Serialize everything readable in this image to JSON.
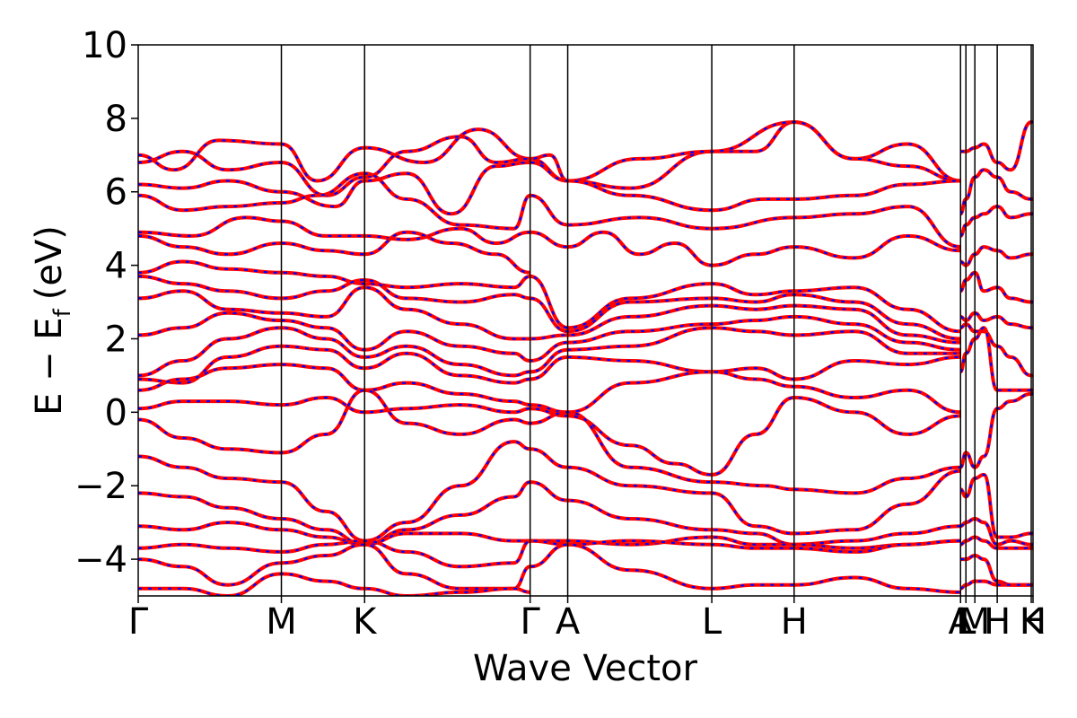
{
  "chart_data": {
    "type": "line",
    "title": "",
    "xlabel": "Wave Vector",
    "ylabel": "E − E",
    "ylabel_sub": "f",
    "ylabel_unit": "(eV)",
    "ylim": [
      -5,
      10
    ],
    "yticks": [
      -4,
      -2,
      0,
      2,
      4,
      6,
      8,
      10
    ],
    "ytick_labels": [
      "−4",
      "−2",
      "0",
      "2",
      "4",
      "6",
      "8",
      "10"
    ],
    "xlim": [
      0,
      1
    ],
    "kpoints": [
      {
        "label": "Γ",
        "x": 0.0
      },
      {
        "label": "M",
        "x": 0.16
      },
      {
        "label": "K",
        "x": 0.253
      },
      {
        "label": "Γ",
        "x": 0.438
      },
      {
        "label": "A",
        "x": 0.48
      },
      {
        "label": "L",
        "x": 0.641
      },
      {
        "label": "H",
        "x": 0.733
      },
      {
        "label": "A",
        "x": 0.919
      },
      {
        "label": "L",
        "x": 0.925
      },
      {
        "label": "M",
        "x": 0.935
      },
      {
        "label": "H",
        "x": 0.96
      },
      {
        "label": "K",
        "x": 0.998
      },
      {
        "label": "H",
        "x": 1.0
      }
    ],
    "grid": false,
    "legend": "none",
    "series_styles": [
      {
        "color": "#ff0000",
        "style": "solid"
      },
      {
        "color": "#0000ff",
        "style": "dashed"
      }
    ],
    "bands": [
      {
        "x": [
          0,
          0.04,
          0.09,
          0.16,
          0.2,
          0.253,
          0.32,
          0.38,
          0.438,
          0.48,
          0.55,
          0.641,
          0.69,
          0.733,
          0.8,
          0.86,
          0.919
        ],
        "y": [
          7.0,
          6.6,
          7.4,
          7.3,
          6.3,
          7.2,
          6.8,
          7.7,
          6.9,
          6.3,
          6.1,
          7.1,
          7.1,
          7.9,
          6.9,
          7.3,
          6.3
        ]
      },
      {
        "x": [
          0,
          0.05,
          0.1,
          0.16,
          0.21,
          0.253,
          0.3,
          0.36,
          0.4,
          0.438,
          0.46,
          0.48,
          0.56,
          0.641,
          0.733,
          0.8,
          0.86,
          0.919
        ],
        "y": [
          6.8,
          7.1,
          6.6,
          6.8,
          5.9,
          6.4,
          7.1,
          7.5,
          6.8,
          6.9,
          7.0,
          6.3,
          6.9,
          7.1,
          7.9,
          6.9,
          6.7,
          6.3
        ]
      },
      {
        "x": [
          0,
          0.05,
          0.1,
          0.16,
          0.22,
          0.253,
          0.3,
          0.35,
          0.4,
          0.438,
          0.48,
          0.55,
          0.641,
          0.7,
          0.733,
          0.8,
          0.86,
          0.919
        ],
        "y": [
          6.2,
          6.1,
          6.3,
          6.0,
          5.6,
          6.3,
          6.5,
          5.4,
          6.7,
          6.8,
          6.3,
          5.9,
          5.5,
          5.8,
          5.8,
          5.9,
          6.2,
          6.3
        ]
      },
      {
        "x": [
          0,
          0.05,
          0.1,
          0.16,
          0.2,
          0.253,
          0.3,
          0.36,
          0.42,
          0.438,
          0.48,
          0.56,
          0.641,
          0.733,
          0.8,
          0.86,
          0.919
        ],
        "y": [
          5.9,
          5.5,
          5.6,
          5.7,
          5.9,
          6.5,
          5.8,
          5.1,
          5.0,
          5.9,
          5.1,
          5.3,
          5.0,
          5.3,
          5.4,
          5.6,
          4.5
        ]
      },
      {
        "x": [
          0,
          0.06,
          0.12,
          0.16,
          0.21,
          0.253,
          0.3,
          0.36,
          0.4,
          0.438,
          0.48,
          0.52,
          0.56,
          0.6,
          0.641,
          0.69,
          0.733,
          0.8,
          0.86,
          0.919
        ],
        "y": [
          4.9,
          4.8,
          5.3,
          5.2,
          4.8,
          4.8,
          4.7,
          5.0,
          4.6,
          4.9,
          4.5,
          4.9,
          4.3,
          4.6,
          4.0,
          4.3,
          4.5,
          4.2,
          4.8,
          4.4
        ]
      },
      {
        "x": [
          0,
          0.05,
          0.1,
          0.16,
          0.21,
          0.253,
          0.3,
          0.35,
          0.4,
          0.438
        ],
        "y": [
          4.8,
          4.5,
          4.3,
          4.6,
          4.4,
          4.3,
          4.9,
          4.6,
          4.3,
          3.8
        ]
      },
      {
        "x": [
          0,
          0.05,
          0.1,
          0.16,
          0.21,
          0.253,
          0.3,
          0.36,
          0.42,
          0.438,
          0.48,
          0.55,
          0.641,
          0.69,
          0.733,
          0.8,
          0.86,
          0.919
        ],
        "y": [
          3.8,
          4.1,
          3.9,
          3.8,
          3.7,
          3.5,
          3.4,
          3.5,
          3.4,
          3.7,
          2.3,
          3.1,
          3.5,
          3.2,
          3.3,
          3.4,
          2.8,
          2.2
        ]
      },
      {
        "x": [
          0,
          0.05,
          0.1,
          0.16,
          0.21,
          0.253,
          0.3,
          0.36,
          0.42,
          0.438,
          0.48,
          0.55,
          0.641,
          0.69,
          0.733,
          0.8,
          0.86,
          0.919
        ],
        "y": [
          3.7,
          3.5,
          3.3,
          3.1,
          3.3,
          3.6,
          3.1,
          3.0,
          3.2,
          3.1,
          2.2,
          3.0,
          3.1,
          3.0,
          3.2,
          3.0,
          2.4,
          2.0
        ]
      },
      {
        "x": [
          0,
          0.05,
          0.1,
          0.16,
          0.21,
          0.253,
          0.3,
          0.36,
          0.42,
          0.438,
          0.48,
          0.55,
          0.641,
          0.69,
          0.733,
          0.8,
          0.86,
          0.919
        ],
        "y": [
          3.1,
          3.3,
          2.8,
          2.7,
          2.6,
          3.4,
          2.8,
          2.4,
          2.0,
          2.0,
          2.1,
          2.6,
          2.9,
          2.8,
          2.9,
          2.8,
          2.1,
          1.9
        ]
      },
      {
        "x": [
          0,
          0.05,
          0.1,
          0.16,
          0.21,
          0.253,
          0.3,
          0.36,
          0.42,
          0.438,
          0.48,
          0.55,
          0.641,
          0.69,
          0.733,
          0.8,
          0.86,
          0.919
        ],
        "y": [
          2.1,
          2.3,
          2.7,
          2.5,
          2.3,
          1.7,
          2.2,
          1.8,
          1.6,
          1.4,
          1.9,
          2.2,
          2.4,
          2.5,
          2.6,
          2.4,
          1.9,
          1.7
        ]
      },
      {
        "x": [
          0,
          0.05,
          0.1,
          0.16,
          0.21,
          0.253,
          0.3,
          0.36,
          0.42,
          0.438,
          0.48,
          0.55,
          0.641,
          0.69,
          0.733,
          0.8,
          0.86,
          0.919
        ],
        "y": [
          1.0,
          1.4,
          2.0,
          2.3,
          2.0,
          1.5,
          1.8,
          1.3,
          1.0,
          1.1,
          1.7,
          1.8,
          2.3,
          2.2,
          2.1,
          2.2,
          1.6,
          1.6
        ]
      },
      {
        "x": [
          0,
          0.05,
          0.1,
          0.16,
          0.21,
          0.253,
          0.3,
          0.36,
          0.42,
          0.438,
          0.48,
          0.55,
          0.641,
          0.69,
          0.733,
          0.8,
          0.86,
          0.919
        ],
        "y": [
          0.9,
          0.8,
          1.5,
          1.8,
          1.7,
          1.2,
          1.6,
          1.0,
          0.8,
          0.9,
          1.5,
          1.4,
          1.1,
          1.2,
          0.9,
          1.4,
          1.3,
          1.5
        ]
      },
      {
        "x": [
          0,
          0.05,
          0.1,
          0.16,
          0.21,
          0.253,
          0.3,
          0.36,
          0.42,
          0.438,
          0.48,
          0.55,
          0.641,
          0.69,
          0.733,
          0.8,
          0.86,
          0.919
        ],
        "y": [
          0.6,
          0.9,
          1.2,
          1.3,
          1.2,
          0.6,
          0.8,
          0.5,
          0.3,
          0.2,
          0.0,
          0.8,
          1.1,
          0.9,
          0.7,
          0.4,
          0.6,
          0.0
        ]
      },
      {
        "x": [
          0,
          0.05,
          0.1,
          0.16,
          0.21,
          0.253,
          0.3,
          0.36,
          0.42,
          0.438,
          0.48,
          0.55,
          0.6,
          0.641,
          0.69,
          0.733,
          0.8,
          0.86,
          0.919
        ],
        "y": [
          0.1,
          0.3,
          0.3,
          0.2,
          0.4,
          0.0,
          0.1,
          0.2,
          0.0,
          0.1,
          -0.1,
          -0.9,
          -1.4,
          -1.7,
          -0.6,
          0.4,
          0.0,
          -0.6,
          -0.1
        ]
      },
      {
        "x": [
          0,
          0.05,
          0.1,
          0.16,
          0.21,
          0.253,
          0.3,
          0.36,
          0.42,
          0.438,
          0.48,
          0.55,
          0.641,
          0.7,
          0.733,
          0.8,
          0.86,
          0.919
        ],
        "y": [
          -0.2,
          -0.7,
          -1.0,
          -1.1,
          -0.6,
          0.6,
          -0.3,
          -0.6,
          -0.2,
          -0.3,
          0.0,
          -1.5,
          -1.9,
          -2.0,
          -2.1,
          -2.2,
          -1.8,
          -1.5
        ]
      },
      {
        "x": [
          0,
          0.05,
          0.1,
          0.16,
          0.21,
          0.253,
          0.3,
          0.36,
          0.42,
          0.438,
          0.48,
          0.55,
          0.641,
          0.69,
          0.733,
          0.8,
          0.86,
          0.919
        ],
        "y": [
          -1.2,
          -1.5,
          -1.8,
          -1.9,
          -2.7,
          -3.5,
          -3.0,
          -2.0,
          -0.8,
          -1.0,
          -1.5,
          -2.0,
          -2.2,
          -3.1,
          -3.3,
          -3.2,
          -2.5,
          -1.6
        ]
      },
      {
        "x": [
          0,
          0.05,
          0.1,
          0.16,
          0.21,
          0.253,
          0.3,
          0.36,
          0.42,
          0.438,
          0.48,
          0.55,
          0.641,
          0.69,
          0.733,
          0.8,
          0.86,
          0.919
        ],
        "y": [
          -2.2,
          -2.3,
          -2.6,
          -2.9,
          -3.2,
          -3.6,
          -3.2,
          -2.8,
          -2.3,
          -1.9,
          -2.4,
          -2.9,
          -3.2,
          -3.3,
          -3.6,
          -3.5,
          -3.3,
          -3.1
        ]
      },
      {
        "x": [
          0,
          0.05,
          0.1,
          0.16,
          0.21,
          0.253,
          0.3,
          0.36,
          0.42,
          0.438,
          0.48,
          0.55,
          0.641,
          0.69,
          0.733,
          0.8,
          0.86,
          0.919
        ],
        "y": [
          -3.1,
          -3.2,
          -3.0,
          -3.2,
          -3.4,
          -3.6,
          -3.3,
          -3.3,
          -3.5,
          -3.5,
          -3.5,
          -3.6,
          -3.4,
          -3.6,
          -3.6,
          -3.7,
          -3.6,
          -3.5
        ]
      },
      {
        "x": [
          0,
          0.05,
          0.1,
          0.16,
          0.21,
          0.253,
          0.3,
          0.36,
          0.42,
          0.438,
          0.48,
          0.55,
          0.641,
          0.69,
          0.733,
          0.8,
          0.86,
          0.919
        ],
        "y": [
          -3.7,
          -3.6,
          -3.7,
          -3.8,
          -3.6,
          -3.5,
          -3.8,
          -4.2,
          -4.1,
          -3.5,
          -3.6,
          -3.5,
          -3.6,
          -3.7,
          -3.7,
          -3.8,
          -3.6,
          -3.5
        ]
      },
      {
        "x": [
          0,
          0.05,
          0.1,
          0.16,
          0.21,
          0.253,
          0.3,
          0.36,
          0.42,
          0.438,
          0.48,
          0.55,
          0.641,
          0.69,
          0.733,
          0.8,
          0.86,
          0.919
        ],
        "y": [
          -4.0,
          -4.2,
          -4.7,
          -4.1,
          -3.9,
          -3.6,
          -4.4,
          -4.8,
          -4.8,
          -4.2,
          -3.6,
          -4.3,
          -4.8,
          -4.7,
          -4.7,
          -4.5,
          -4.8,
          -4.9
        ]
      },
      {
        "x": [
          0,
          0.05,
          0.1,
          0.16,
          0.21,
          0.253,
          0.3,
          0.36,
          0.42,
          0.438
        ],
        "y": [
          -4.8,
          -4.8,
          -5.0,
          -4.4,
          -4.6,
          -4.8,
          -5.0,
          -4.9,
          -4.8,
          -4.9
        ]
      },
      {
        "x": [
          0.919,
          0.925,
          0.935,
          0.945,
          0.96,
          0.975,
          0.998,
          1.0
        ],
        "y": [
          7.1,
          7.1,
          7.2,
          7.3,
          6.8,
          6.6,
          7.9,
          7.9
        ]
      },
      {
        "x": [
          0.919,
          0.925,
          0.935,
          0.945,
          0.96,
          0.975,
          0.998,
          1.0
        ],
        "y": [
          5.4,
          5.8,
          6.4,
          6.6,
          6.4,
          6.0,
          5.8,
          5.8
        ]
      },
      {
        "x": [
          0.919,
          0.925,
          0.935,
          0.945,
          0.96,
          0.975,
          0.998,
          1.0
        ],
        "y": [
          4.8,
          5.1,
          5.3,
          5.4,
          5.6,
          5.3,
          5.4,
          5.4
        ]
      },
      {
        "x": [
          0.919,
          0.925,
          0.935,
          0.945,
          0.96,
          0.975,
          0.998,
          1.0
        ],
        "y": [
          4.1,
          4.0,
          4.3,
          4.5,
          4.4,
          4.2,
          4.3,
          4.3
        ]
      },
      {
        "x": [
          0.919,
          0.925,
          0.935,
          0.945,
          0.96,
          0.975,
          0.998,
          1.0
        ],
        "y": [
          3.3,
          3.6,
          3.8,
          3.3,
          3.4,
          3.1,
          3.0,
          3.0
        ]
      },
      {
        "x": [
          0.919,
          0.925,
          0.935,
          0.945,
          0.96,
          0.975,
          0.998,
          1.0
        ],
        "y": [
          2.6,
          2.5,
          2.7,
          2.5,
          2.6,
          2.4,
          2.3,
          2.3
        ]
      },
      {
        "x": [
          0.919,
          0.925,
          0.935,
          0.945,
          0.96,
          0.975,
          0.998,
          1.0
        ],
        "y": [
          2.3,
          2.4,
          2.2,
          2.2,
          1.8,
          1.5,
          1.0,
          1.0
        ]
      },
      {
        "x": [
          0.919,
          0.925,
          0.935,
          0.945,
          0.96,
          0.975,
          0.998,
          1.0
        ],
        "y": [
          1.1,
          1.6,
          2.0,
          2.3,
          0.6,
          0.6,
          0.6,
          0.6
        ]
      },
      {
        "x": [
          0.919,
          0.925,
          0.935,
          0.945,
          0.96,
          0.975,
          0.998,
          1.0
        ],
        "y": [
          -1.5,
          -1.1,
          -1.5,
          -1.2,
          0.1,
          0.3,
          0.5,
          0.5
        ]
      },
      {
        "x": [
          0.919,
          0.925,
          0.935,
          0.945,
          0.96,
          0.975,
          0.998,
          1.0
        ],
        "y": [
          -2.1,
          -2.3,
          -1.8,
          -1.7,
          -3.4,
          -3.4,
          -3.3,
          -3.3
        ]
      },
      {
        "x": [
          0.919,
          0.925,
          0.935,
          0.945,
          0.96,
          0.975,
          0.998,
          1.0
        ],
        "y": [
          -3.1,
          -3.0,
          -2.9,
          -3.0,
          -3.6,
          -3.5,
          -3.6,
          -3.6
        ]
      },
      {
        "x": [
          0.919,
          0.925,
          0.935,
          0.945,
          0.96,
          0.975,
          0.998,
          1.0
        ],
        "y": [
          -3.6,
          -3.5,
          -3.4,
          -3.5,
          -3.7,
          -3.7,
          -3.7,
          -3.7
        ]
      },
      {
        "x": [
          0.919,
          0.925,
          0.935,
          0.945,
          0.96,
          0.975,
          0.998,
          1.0
        ],
        "y": [
          -4.0,
          -4.0,
          -3.9,
          -4.0,
          -4.6,
          -4.7,
          -4.7,
          -4.7
        ]
      },
      {
        "x": [
          0.919,
          0.925,
          0.935,
          0.945,
          0.96,
          0.975,
          0.998,
          1.0
        ],
        "y": [
          -4.8,
          -4.7,
          -4.6,
          -4.6,
          -4.7,
          -4.7,
          -4.7,
          -4.7
        ]
      }
    ]
  }
}
